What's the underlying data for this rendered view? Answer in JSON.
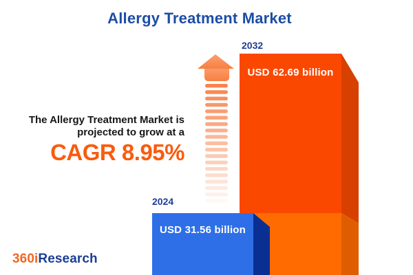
{
  "header": {
    "title": "Allergy Treatment Market"
  },
  "tagline": {
    "line1": "The Allergy Treatment Market is",
    "line2": "projected to grow at a",
    "cagr": "CAGR 8.95%"
  },
  "chart": {
    "bars": [
      {
        "year": "2024",
        "value_label": "USD 31.56 billion"
      },
      {
        "year": "2032",
        "value_label": "USD 62.69 billion"
      }
    ]
  },
  "chart_data": {
    "type": "bar",
    "categories": [
      "2024",
      "2032"
    ],
    "values": [
      31.56,
      62.69
    ],
    "unit": "USD billion",
    "title": "Allergy Treatment Market",
    "annotations": [
      "CAGR 8.95%",
      "The Allergy Treatment Market is projected to grow at a"
    ],
    "legend": "none",
    "grid": false,
    "bar_colors": [
      "#2E6FE7",
      "#FB4800"
    ],
    "style": "3d-extruded-bars-with-growth-arrow"
  },
  "icons": {
    "growth_arrow": "striped-up-arrow"
  },
  "footer": {
    "logo_prefix": "360i",
    "logo_suffix": "Research"
  },
  "colors": {
    "title-blue": "#1C4DA6",
    "navy": "#1E3C96",
    "text-dark": "#161616",
    "accent-orange": "#FA5B0D",
    "blue-front": "#2E6FE7",
    "blue-side": "#0A2F93",
    "orange-front-top": "#FB4800",
    "orange-front-bottom": "#FF6B00",
    "orange-side-top": "#D84000",
    "orange-side-bottom": "#E05C00",
    "stripe": "#F8834D",
    "arrow-head-top": "#FB9F72",
    "arrow-head-bottom": "#F8803F",
    "value-label": "#FFFFFF",
    "logo-orange": "#F26722",
    "logo-navy": "#1C3E94",
    "background": "#FFFFFF"
  }
}
